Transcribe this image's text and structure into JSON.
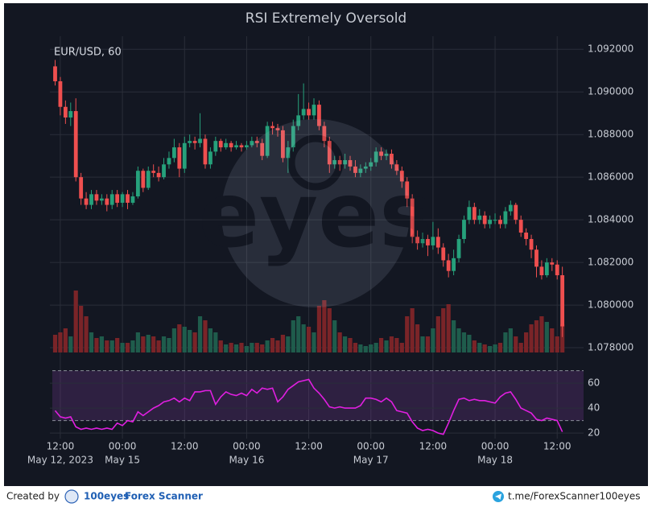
{
  "chart_data": {
    "type": "candlestick",
    "title": "RSI Extremely Oversold",
    "symbol": "EUR/USD, 60",
    "watermark": "eyes",
    "up_color": "#26a17b",
    "down_color": "#ef4f4f",
    "open": [
      1.0912,
      1.0905,
      1.0893,
      1.0888,
      1.0891,
      1.086,
      1.085,
      1.0847,
      1.0852,
      1.0849,
      1.085,
      1.0847,
      1.0852,
      1.0848,
      1.0852,
      1.0848,
      1.0851,
      1.0863,
      1.0855,
      1.0863,
      1.0862,
      1.086,
      1.0866,
      1.0869,
      1.0874,
      1.0864,
      1.0876,
      1.0877,
      1.0876,
      1.0878,
      1.0866,
      1.0872,
      1.0877,
      1.0874,
      1.0876,
      1.0874,
      1.0875,
      1.0874,
      1.0875,
      1.0877,
      1.0876,
      1.087,
      1.0884,
      1.0883,
      1.0882,
      1.0869,
      1.0874,
      1.0884,
      1.0889,
      1.0892,
      1.0889,
      1.0894,
      1.0884,
      1.0877,
      1.0866,
      1.0868,
      1.0866,
      1.0868,
      1.0865,
      1.0862,
      1.0864,
      1.0865,
      1.0867,
      1.0872,
      1.087,
      1.0871,
      1.0866,
      1.0863,
      1.0858,
      1.085,
      1.0832,
      1.0829,
      1.0831,
      1.0828,
      1.0832,
      1.0827,
      1.0821,
      1.0816,
      1.0822,
      1.0831,
      1.084,
      1.0846,
      1.084,
      1.0842,
      1.0838,
      1.084,
      1.084,
      1.0838,
      1.0844,
      1.0847,
      1.084,
      1.0834,
      1.0831,
      1.0826,
      1.0818,
      1.0814,
      1.082,
      1.0819,
      1.0814
    ],
    "high": [
      1.0915,
      1.0907,
      1.0896,
      1.0895,
      1.0897,
      1.0862,
      1.0853,
      1.0854,
      1.0854,
      1.0852,
      1.0852,
      1.0854,
      1.0854,
      1.0853,
      1.0854,
      1.0853,
      1.0865,
      1.0864,
      1.0865,
      1.0866,
      1.0865,
      1.0869,
      1.0872,
      1.0878,
      1.0876,
      1.0879,
      1.088,
      1.0879,
      1.089,
      1.088,
      1.0874,
      1.0879,
      1.0878,
      1.0878,
      1.0877,
      1.0877,
      1.0876,
      1.0877,
      1.0879,
      1.0879,
      1.0878,
      1.0886,
      1.0886,
      1.0885,
      1.0884,
      1.0877,
      1.0887,
      1.0899,
      1.0904,
      1.0895,
      1.0897,
      1.0896,
      1.0886,
      1.0879,
      1.087,
      1.087,
      1.0871,
      1.087,
      1.0868,
      1.0866,
      1.0867,
      1.0869,
      1.0874,
      1.0874,
      1.0873,
      1.0873,
      1.0868,
      1.0865,
      1.086,
      1.0852,
      1.0835,
      1.0834,
      1.0833,
      1.0839,
      1.0836,
      1.0829,
      1.0824,
      1.0826,
      1.0833,
      1.0842,
      1.0849,
      1.0848,
      1.0845,
      1.0844,
      1.0842,
      1.0843,
      1.0842,
      1.0846,
      1.0849,
      1.0848,
      1.0842,
      1.0836,
      1.0833,
      1.0828,
      1.0821,
      1.0822,
      1.0822,
      1.0821,
      1.0818
    ],
    "low": [
      1.0903,
      1.0889,
      1.0885,
      1.0884,
      1.0858,
      1.0847,
      1.0845,
      1.0845,
      1.0847,
      1.0847,
      1.0844,
      1.0845,
      1.0846,
      1.0846,
      1.0845,
      1.0847,
      1.085,
      1.0853,
      1.0854,
      1.086,
      1.0858,
      1.0859,
      1.0864,
      1.0867,
      1.086,
      1.0862,
      1.0874,
      1.0873,
      1.0874,
      1.0864,
      1.0864,
      1.087,
      1.0872,
      1.0873,
      1.0872,
      1.0873,
      1.0872,
      1.0873,
      1.0874,
      1.0874,
      1.0868,
      1.0869,
      1.088,
      1.0879,
      1.0867,
      1.0862,
      1.0872,
      1.0882,
      1.0887,
      1.0887,
      1.0887,
      1.0882,
      1.0874,
      1.0862,
      1.0864,
      1.0863,
      1.0864,
      1.0863,
      1.086,
      1.086,
      1.0862,
      1.0863,
      1.0865,
      1.0868,
      1.0868,
      1.0864,
      1.0861,
      1.0855,
      1.0846,
      1.0829,
      1.0826,
      1.0827,
      1.0823,
      1.0826,
      1.0824,
      1.0818,
      1.0813,
      1.0814,
      1.082,
      1.0829,
      1.0838,
      1.0838,
      1.0838,
      1.0836,
      1.0836,
      1.0838,
      1.0836,
      1.0836,
      1.0842,
      1.0838,
      1.0832,
      1.0828,
      1.0822,
      1.0813,
      1.0812,
      1.0813,
      1.0816,
      1.0812,
      1.0785
    ],
    "close": [
      1.0905,
      1.0893,
      1.0888,
      1.0891,
      1.086,
      1.085,
      1.0847,
      1.0852,
      1.0849,
      1.085,
      1.0847,
      1.0852,
      1.0848,
      1.0852,
      1.0848,
      1.0851,
      1.0863,
      1.0855,
      1.0863,
      1.0862,
      1.086,
      1.0866,
      1.0869,
      1.0874,
      1.0864,
      1.0876,
      1.0877,
      1.0876,
      1.0878,
      1.0866,
      1.0872,
      1.0877,
      1.0874,
      1.0876,
      1.0874,
      1.0875,
      1.0874,
      1.0875,
      1.0877,
      1.0876,
      1.087,
      1.0884,
      1.0883,
      1.0882,
      1.0869,
      1.0874,
      1.0884,
      1.0889,
      1.0892,
      1.0889,
      1.0894,
      1.0884,
      1.0877,
      1.0866,
      1.0868,
      1.0866,
      1.0868,
      1.0865,
      1.0862,
      1.0864,
      1.0865,
      1.0867,
      1.0872,
      1.087,
      1.0871,
      1.0866,
      1.0863,
      1.0858,
      1.085,
      1.0832,
      1.0829,
      1.0831,
      1.0828,
      1.0832,
      1.0827,
      1.0821,
      1.0816,
      1.0822,
      1.0831,
      1.084,
      1.0846,
      1.084,
      1.0842,
      1.0838,
      1.084,
      1.084,
      1.0838,
      1.0844,
      1.0847,
      1.084,
      1.0834,
      1.0831,
      1.0826,
      1.0818,
      1.0814,
      1.082,
      1.0819,
      1.0814,
      1.079
    ],
    "volume": [
      22,
      25,
      30,
      20,
      77,
      58,
      45,
      25,
      18,
      20,
      15,
      15,
      18,
      12,
      12,
      15,
      25,
      20,
      22,
      20,
      15,
      20,
      18,
      30,
      35,
      32,
      28,
      25,
      45,
      40,
      30,
      25,
      15,
      10,
      12,
      10,
      12,
      8,
      12,
      12,
      10,
      15,
      18,
      15,
      22,
      20,
      40,
      45,
      35,
      32,
      25,
      58,
      65,
      55,
      40,
      25,
      20,
      18,
      12,
      10,
      8,
      10,
      12,
      18,
      15,
      20,
      18,
      12,
      45,
      55,
      35,
      20,
      20,
      30,
      45,
      55,
      60,
      40,
      30,
      25,
      22,
      15,
      12,
      10,
      8,
      10,
      12,
      25,
      30,
      20,
      12,
      25,
      35,
      40,
      45,
      38,
      30,
      20,
      35
    ],
    "ylim": [
      1.0777,
      1.0925
    ],
    "yticks": [
      {
        "value": 1.078,
        "label": "1.078000"
      },
      {
        "value": 1.08,
        "label": "1.080000"
      },
      {
        "value": 1.082,
        "label": "1.082000"
      },
      {
        "value": 1.084,
        "label": "1.084000"
      },
      {
        "value": 1.086,
        "label": "1.086000"
      },
      {
        "value": 1.088,
        "label": "1.088000"
      },
      {
        "value": 1.09,
        "label": "1.090000"
      },
      {
        "value": 1.092,
        "label": "1.092000"
      }
    ],
    "xticks": [
      {
        "value": 1,
        "label": "12:00"
      },
      {
        "value": 13,
        "label": "00:00"
      },
      {
        "value": 25,
        "label": "12:00"
      },
      {
        "value": 37,
        "label": "00:00"
      },
      {
        "value": 49,
        "label": "12:00"
      },
      {
        "value": 61,
        "label": "00:00"
      },
      {
        "value": 73,
        "label": "12:00"
      },
      {
        "value": 85,
        "label": "00:00"
      },
      {
        "value": 97,
        "label": "12:00"
      }
    ],
    "date_labels": [
      {
        "value": 1,
        "label": "May 12, 2023"
      },
      {
        "value": 13,
        "label": "May 15"
      },
      {
        "value": 37,
        "label": "May 16"
      },
      {
        "value": 61,
        "label": "May 17"
      },
      {
        "value": 85,
        "label": "May 18"
      }
    ],
    "rsi": {
      "color": "#e01fe0",
      "values": [
        38,
        33,
        32,
        33,
        25,
        23,
        24,
        23,
        24,
        23,
        24,
        23,
        28,
        26,
        30,
        29,
        37,
        34,
        37,
        40,
        42,
        45,
        46,
        48,
        45,
        48,
        46,
        53,
        53,
        54,
        54,
        43,
        49,
        53,
        51,
        50,
        52,
        50,
        55,
        52,
        56,
        55,
        56,
        45,
        49,
        55,
        58,
        61,
        62,
        63,
        56,
        52,
        47,
        41,
        40,
        41,
        40,
        40,
        40,
        42,
        48,
        48,
        47,
        45,
        48,
        45,
        38,
        37,
        36,
        29,
        24,
        22,
        23,
        22,
        20,
        19,
        28,
        38,
        47,
        48,
        46,
        47,
        46,
        46,
        45,
        44,
        49,
        52,
        53,
        47,
        40,
        38,
        36,
        31,
        30,
        32,
        31,
        30,
        21
      ],
      "ylim": [
        17.5,
        72.3
      ],
      "yticks": [
        20,
        40,
        60
      ],
      "levels": [
        30,
        70
      ]
    }
  },
  "footer": {
    "created_by": "Created by",
    "brand": "100eyes",
    "product": "Forex Scanner",
    "link": "t.me/ForexScanner100eyes"
  }
}
